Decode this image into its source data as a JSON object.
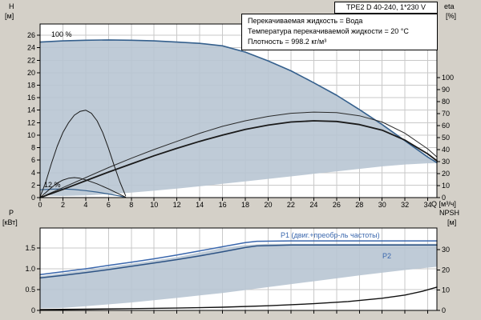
{
  "title_box": {
    "text": "TPE2 D 40-240, 1*230 V"
  },
  "info_box": {
    "lines": [
      "Перекачиваемая жидкость = Вода",
      "Температура перекачиваемой жидкости = 20 °C",
      "Плотность = 998.2 кг/м³"
    ]
  },
  "axis_titles": {
    "h": "H",
    "h_unit": "[м]",
    "eta": "eta",
    "eta_unit": "[%]",
    "p": "P",
    "p_unit": "[кВт]",
    "npsh": "NPSH",
    "npsh_unit": "[м]"
  },
  "colors": {
    "panel_bg": "#d4d0c8",
    "plot_bg": "#ffffff",
    "grid": "#c9c9c9",
    "operating_area": "#b8c5d3",
    "speed_curve": "#35608d",
    "p1": "#3a67ad",
    "p2": "#2d5384"
  },
  "chart_data": [
    {
      "id": "qh",
      "type": "line",
      "x_axis": {
        "label": "Q [м³/ч]",
        "min": 0,
        "max": 34.8,
        "ticks": [
          0,
          2,
          4,
          6,
          8,
          10,
          12,
          14,
          16,
          18,
          20,
          22,
          24,
          26,
          28,
          30,
          32,
          34
        ]
      },
      "y_left": {
        "label": "H [м]",
        "min": 0,
        "max": 27.8,
        "ticks": [
          0,
          2,
          4,
          6,
          8,
          10,
          12,
          14,
          16,
          18,
          20,
          22,
          24,
          26
        ]
      },
      "y_right": {
        "label": "eta [%]",
        "min": 0,
        "max": 144.7,
        "ticks": [
          0,
          10,
          20,
          30,
          40,
          50,
          60,
          70,
          80,
          90,
          100
        ]
      },
      "areas": [
        {
          "name": "operating-range",
          "color": "#b8c5d3",
          "upper": [
            [
              0,
              24.9
            ],
            [
              2,
              25.1
            ],
            [
              4,
              25.2
            ],
            [
              6,
              25.25
            ],
            [
              8,
              25.2
            ],
            [
              10,
              25.1
            ],
            [
              12,
              24.9
            ],
            [
              14,
              24.7
            ],
            [
              16,
              24.3
            ],
            [
              18,
              23.3
            ],
            [
              20,
              21.9
            ],
            [
              22,
              20.3
            ],
            [
              24,
              18.4
            ],
            [
              26,
              16.4
            ],
            [
              28,
              14.1
            ],
            [
              30,
              11.7
            ],
            [
              32,
              9.1
            ],
            [
              34,
              6.5
            ],
            [
              34.8,
              5.6
            ]
          ],
          "lower": [
            [
              0,
              0.6
            ],
            [
              1,
              0.3
            ],
            [
              2,
              0.25
            ],
            [
              4,
              0.35
            ],
            [
              6,
              0.55
            ],
            [
              8,
              0.8
            ],
            [
              10,
              1.1
            ],
            [
              12,
              1.45
            ],
            [
              14,
              1.8
            ],
            [
              16,
              2.2
            ],
            [
              18,
              2.6
            ],
            [
              20,
              3.0
            ],
            [
              22,
              3.4
            ],
            [
              24,
              3.8
            ],
            [
              26,
              4.2
            ],
            [
              28,
              4.6
            ],
            [
              30,
              5.0
            ],
            [
              32,
              5.3
            ],
            [
              34,
              5.5
            ],
            [
              34.8,
              5.5
            ]
          ]
        }
      ],
      "series": [
        {
          "name": "qh-100pct",
          "label": "100 %",
          "axis": "left",
          "color": "#35608d",
          "width": 1.6,
          "points": [
            [
              0,
              24.9
            ],
            [
              2,
              25.1
            ],
            [
              4,
              25.2
            ],
            [
              6,
              25.25
            ],
            [
              8,
              25.2
            ],
            [
              10,
              25.1
            ],
            [
              12,
              24.9
            ],
            [
              14,
              24.7
            ],
            [
              16,
              24.3
            ],
            [
              18,
              23.3
            ],
            [
              20,
              21.9
            ],
            [
              22,
              20.3
            ],
            [
              24,
              18.4
            ],
            [
              26,
              16.4
            ],
            [
              28,
              14.1
            ],
            [
              30,
              11.7
            ],
            [
              32,
              9.1
            ],
            [
              34,
              6.5
            ],
            [
              34.8,
              5.6
            ]
          ]
        },
        {
          "name": "qh-12pct",
          "label": "12 %",
          "axis": "left",
          "color": "#35608d",
          "width": 1.2,
          "points": [
            [
              0,
              1.25
            ],
            [
              1,
              1.35
            ],
            [
              2,
              1.38
            ],
            [
              3,
              1.3
            ],
            [
              4,
              1.12
            ],
            [
              5,
              0.88
            ],
            [
              6,
              0.58
            ],
            [
              7,
              0.25
            ],
            [
              7.4,
              0.08
            ]
          ]
        },
        {
          "name": "efficiency-upper",
          "label": "",
          "axis": "right",
          "color": "#2a2a2a",
          "width": 1,
          "points": [
            [
              0,
              0
            ],
            [
              2,
              8.3
            ],
            [
              4,
              16.7
            ],
            [
              6,
              25.0
            ],
            [
              8,
              32.8
            ],
            [
              10,
              40.1
            ],
            [
              12,
              46.9
            ],
            [
              14,
              53.6
            ],
            [
              16,
              59.4
            ],
            [
              18,
              64.0
            ],
            [
              20,
              67.7
            ],
            [
              22,
              70.3
            ],
            [
              24,
              71.3
            ],
            [
              26,
              70.8
            ],
            [
              28,
              68.2
            ],
            [
              30,
              63.0
            ],
            [
              32,
              53.6
            ],
            [
              34,
              40.6
            ],
            [
              34.8,
              33.8
            ]
          ]
        },
        {
          "name": "efficiency-lower",
          "label": "",
          "axis": "right",
          "color": "#1a1a1a",
          "width": 1.8,
          "points": [
            [
              0,
              0
            ],
            [
              2,
              6.8
            ],
            [
              4,
              14.1
            ],
            [
              6,
              21.3
            ],
            [
              8,
              28.1
            ],
            [
              10,
              34.9
            ],
            [
              12,
              41.1
            ],
            [
              14,
              46.9
            ],
            [
              16,
              52.1
            ],
            [
              18,
              56.8
            ],
            [
              20,
              60.4
            ],
            [
              22,
              63.0
            ],
            [
              24,
              64.0
            ],
            [
              26,
              63.5
            ],
            [
              28,
              60.9
            ],
            [
              30,
              56.2
            ],
            [
              32,
              47.9
            ],
            [
              34,
              36.4
            ],
            [
              34.8,
              30.7
            ]
          ]
        },
        {
          "name": "low-speed-curve-a",
          "label": "",
          "axis": "left",
          "color": "#1a1a1a",
          "width": 1,
          "points": [
            [
              0,
              0.05
            ],
            [
              0.5,
              0.8
            ],
            [
              1,
              1.6
            ],
            [
              1.5,
              2.3
            ],
            [
              2,
              2.8
            ],
            [
              2.5,
              3.1
            ],
            [
              3,
              3.2
            ],
            [
              3.5,
              3.1
            ],
            [
              4,
              2.85
            ],
            [
              5,
              2.2
            ],
            [
              6,
              1.4
            ],
            [
              7,
              0.5
            ],
            [
              7.5,
              0.08
            ]
          ]
        },
        {
          "name": "low-speed-curve-b",
          "label": "",
          "axis": "left",
          "color": "#1a1a1a",
          "width": 1,
          "points": [
            [
              0,
              0.1
            ],
            [
              0.5,
              2.5
            ],
            [
              1,
              5.5
            ],
            [
              1.5,
              8.2
            ],
            [
              2,
              10.4
            ],
            [
              2.5,
              12.0
            ],
            [
              3,
              13.2
            ],
            [
              3.5,
              13.8
            ],
            [
              4,
              14.0
            ],
            [
              4.5,
              13.5
            ],
            [
              5,
              12.3
            ],
            [
              5.5,
              10.4
            ],
            [
              6,
              7.9
            ],
            [
              6.5,
              5.1
            ],
            [
              7,
              2.5
            ],
            [
              7.5,
              0.3
            ]
          ]
        }
      ]
    },
    {
      "id": "power",
      "type": "line",
      "x_axis": {
        "label": "",
        "min": 0,
        "max": 34.8,
        "ticks": [
          0,
          2,
          4,
          6,
          8,
          10,
          12,
          14,
          16,
          18,
          20,
          22,
          24,
          26,
          28,
          30,
          32,
          34
        ]
      },
      "y_left": {
        "label": "P [кВт]",
        "min": 0,
        "max": 1.98,
        "ticks": [
          0,
          0.5,
          1,
          1.5
        ],
        "tick_labels": [
          "0",
          "0.5",
          "1.0",
          "1.5"
        ]
      },
      "y_right": {
        "label": "NPSH [м]",
        "min": 0,
        "max": 40.7,
        "ticks": [
          0,
          10,
          20,
          30
        ]
      },
      "areas": [
        {
          "name": "power-range",
          "color": "#b8c5d3",
          "upper": [
            [
              0,
              0.82
            ],
            [
              4,
              0.97
            ],
            [
              8,
              1.12
            ],
            [
              12,
              1.28
            ],
            [
              16,
              1.5
            ],
            [
              18,
              1.57
            ],
            [
              20,
              1.6
            ],
            [
              24,
              1.6
            ],
            [
              28,
              1.6
            ],
            [
              32,
              1.6
            ],
            [
              34.8,
              1.6
            ]
          ],
          "lower": [
            [
              0,
              0.05
            ],
            [
              2,
              0.06
            ],
            [
              4,
              0.1
            ],
            [
              8,
              0.19
            ],
            [
              12,
              0.3
            ],
            [
              16,
              0.42
            ],
            [
              20,
              0.56
            ],
            [
              24,
              0.7
            ],
            [
              28,
              0.84
            ],
            [
              32,
              0.97
            ],
            [
              34.8,
              1.05
            ]
          ]
        }
      ],
      "series": [
        {
          "name": "p1",
          "label": "P1 (двиг.+преобр-ль частоты)",
          "axis": "left",
          "color": "#3a67ad",
          "width": 1.5,
          "points": [
            [
              0,
              0.86
            ],
            [
              2,
              0.93
            ],
            [
              4,
              1.0
            ],
            [
              6,
              1.08
            ],
            [
              8,
              1.16
            ],
            [
              10,
              1.24
            ],
            [
              12,
              1.33
            ],
            [
              14,
              1.43
            ],
            [
              16,
              1.53
            ],
            [
              18,
              1.63
            ],
            [
              19,
              1.66
            ],
            [
              22,
              1.67
            ],
            [
              26,
              1.67
            ],
            [
              30,
              1.67
            ],
            [
              34.8,
              1.67
            ]
          ]
        },
        {
          "name": "p2",
          "label": "P2",
          "axis": "left",
          "color": "#2d5384",
          "width": 1.5,
          "points": [
            [
              0,
              0.78
            ],
            [
              2,
              0.84
            ],
            [
              4,
              0.91
            ],
            [
              6,
              0.98
            ],
            [
              8,
              1.06
            ],
            [
              10,
              1.14
            ],
            [
              12,
              1.22
            ],
            [
              14,
              1.31
            ],
            [
              16,
              1.41
            ],
            [
              18,
              1.51
            ],
            [
              19,
              1.55
            ],
            [
              22,
              1.57
            ],
            [
              26,
              1.57
            ],
            [
              30,
              1.57
            ],
            [
              34.8,
              1.57
            ]
          ]
        },
        {
          "name": "npsh",
          "label": "NPSH",
          "axis": "right",
          "color": "#111111",
          "width": 1.4,
          "points": [
            [
              0,
              0.4
            ],
            [
              4,
              0.6
            ],
            [
              8,
              0.85
            ],
            [
              12,
              1.15
            ],
            [
              16,
              1.6
            ],
            [
              20,
              2.3
            ],
            [
              24,
              3.3
            ],
            [
              27,
              4.4
            ],
            [
              30,
              6.0
            ],
            [
              32,
              7.6
            ],
            [
              33.5,
              9.4
            ],
            [
              34.8,
              11.5
            ]
          ]
        }
      ]
    }
  ]
}
